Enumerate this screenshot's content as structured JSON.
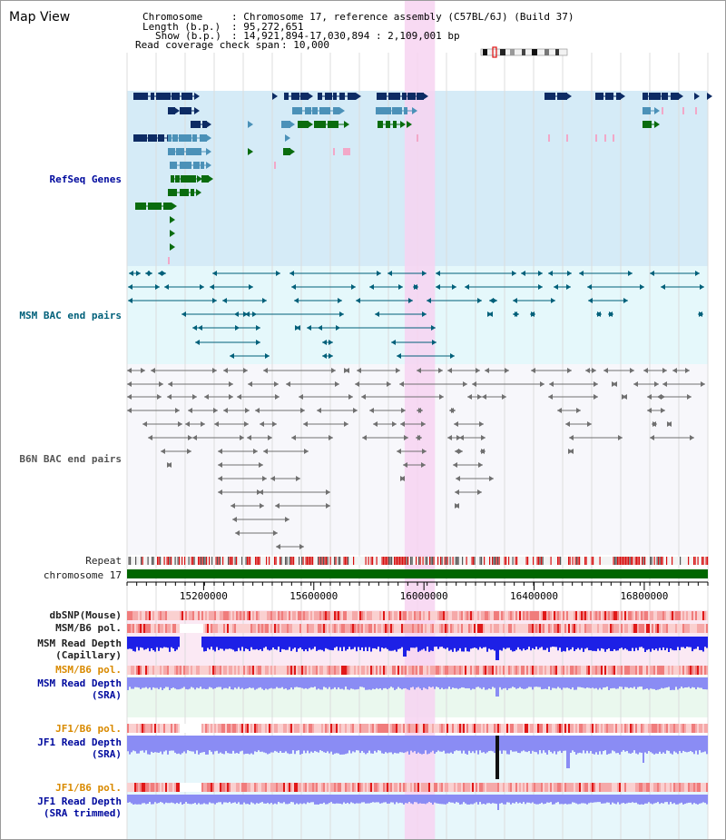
{
  "page_title": "Map View",
  "info": {
    "chromosome_label": "Chromosome",
    "chromosome_value": ": Chromosome 17, reference assembly (C57BL/6J) (Build 37)",
    "length_label": "Length (b.p.)",
    "length_value": ": 95,272,651",
    "show_label": "Show (b.p.)",
    "show_value": ": 14,921,894-17,030,894 : 2,109,001 bp",
    "coverage_label": "Read coverage check span",
    "coverage_value": ": 10,000"
  },
  "view": {
    "start": 14921894,
    "end": 17030894,
    "highlight_start": 15930000,
    "highlight_end": 16040000
  },
  "colors": {
    "refseq_bg": "#d5ebf7",
    "msm_bac_bg": "#e5f8fb",
    "b6n_bac_bg": "#f7f7fb",
    "highlight": "#f7d3f1",
    "gene_navy": "#0d2b64",
    "gene_teal": "#4b91b8",
    "gene_green": "#0a6c0e",
    "gene_pink": "#f2a8c8",
    "msm_line": "#00607a",
    "b6n_line": "#707070",
    "chromosome_bar": "#006600",
    "repeat_red": "#d81010",
    "depth_capillary": "#1d20e6",
    "depth_sra": "#8a8cf4",
    "label_navy": "#000a9e",
    "label_orange": "#d98a00",
    "label_dark": "#222222"
  },
  "tracks": {
    "refseq_label": "RefSeq Genes",
    "msm_bac_label": "MSM BAC end pairs",
    "b6n_bac_label": "B6N BAC end pairs",
    "repeat_label": "Repeat",
    "chromosome_label": "chromosome 17",
    "dbsnp_label": "dbSNP(Mouse)",
    "msm_pol_1_label": "MSM/B6 pol.",
    "msm_depth_cap_label_1": "MSM Read Depth",
    "msm_depth_cap_label_2": "(Capillary)",
    "msm_pol_2_label": "MSM/B6 pol.",
    "msm_depth_sra_label_1": "MSM Read Depth",
    "msm_depth_sra_label_2": "(SRA)",
    "jf1_pol_1_label": "JF1/B6 pol.",
    "jf1_depth_label_1": "JF1 Read Depth",
    "jf1_depth_label_2": "(SRA)",
    "jf1_pol_2_label": "JF1/B6 pol.",
    "jf1_trim_label_1": "JF1 Read Depth",
    "jf1_trim_label_2": "(SRA trimmed)"
  },
  "axis": {
    "ticks": [
      "15200000",
      "15600000",
      "16000000",
      "16400000",
      "16800000"
    ],
    "tick_values": [
      15200000,
      15600000,
      16000000,
      16400000,
      16800000
    ]
  },
  "ideogram": {
    "centromere_hint": "chromosome 17 band overview"
  }
}
